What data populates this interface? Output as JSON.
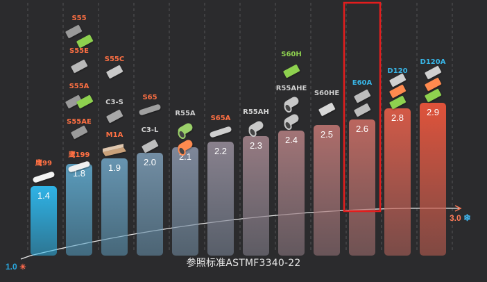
{
  "chart_data": {
    "type": "bar",
    "caption": "参照标准ASTMF3340-22",
    "scale_min": "1.0",
    "scale_max": "3.0",
    "ylim": [
      1.0,
      3.0
    ],
    "highlight": "E60A",
    "bars": [
      {
        "value": 1.4,
        "labels": [
          "鹰99"
        ],
        "label_colors": [
          "#ff7043"
        ]
      },
      {
        "value": 1.8,
        "labels": [
          "S55",
          "S55E",
          "S55A",
          "S55AE",
          "鹰199"
        ],
        "label_colors": [
          "#ff7043",
          "#ff7043",
          "#ff7043",
          "#ff7043",
          "#ff7043"
        ]
      },
      {
        "value": 1.9,
        "labels": [
          "S55C",
          "C3-S",
          "M1A"
        ],
        "label_colors": [
          "#ff7043",
          "#d0d0d0",
          "#ff7043"
        ]
      },
      {
        "value": 2.0,
        "labels": [
          "S65",
          "C3-L"
        ],
        "label_colors": [
          "#ff7043",
          "#d0d0d0"
        ]
      },
      {
        "value": 2.1,
        "labels": [
          "R55A"
        ],
        "label_colors": [
          "#d0d0d0"
        ]
      },
      {
        "value": 2.2,
        "labels": [
          "S65A"
        ],
        "label_colors": [
          "#ff7043"
        ]
      },
      {
        "value": 2.3,
        "labels": [
          "R55AH"
        ],
        "label_colors": [
          "#d0d0d0"
        ]
      },
      {
        "value": 2.4,
        "labels": [
          "S60H",
          "R55AHE"
        ],
        "label_colors": [
          "#8ed14f",
          "#d0d0d0"
        ]
      },
      {
        "value": 2.5,
        "labels": [
          "S60HE"
        ],
        "label_colors": [
          "#d0d0d0"
        ]
      },
      {
        "value": 2.6,
        "labels": [
          "E60A"
        ],
        "label_colors": [
          "#38b5e6"
        ]
      },
      {
        "value": 2.8,
        "labels": [
          "D120"
        ],
        "label_colors": [
          "#38b5e6"
        ]
      },
      {
        "value": 2.9,
        "labels": [
          "D120A"
        ],
        "label_colors": [
          "#38b5e6"
        ]
      }
    ],
    "value_labels": [
      "1.4",
      "1.8",
      "1.9",
      "2.0",
      "2.1",
      "2.2",
      "2.3",
      "2.4",
      "2.5",
      "2.6",
      "2.8",
      "2.9"
    ],
    "colors": {
      "background": "#2b2b2d",
      "gradient_start": "#2fb3e6",
      "gradient_end": "#e0523a",
      "highlight_border": "#e21d1d",
      "scale_min_color": "#2aa6dd",
      "scale_max_color": "#ff7a57"
    },
    "icons": [
      "sun-icon",
      "snowflake-icon"
    ],
    "grid": "vertical-dashed"
  }
}
